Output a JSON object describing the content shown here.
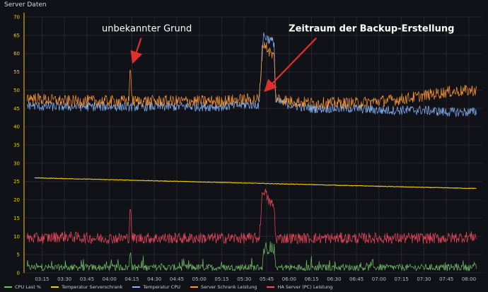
{
  "panel": {
    "title": "Server Daten"
  },
  "chart_data": {
    "type": "line",
    "xlabel": "",
    "ylabel": "",
    "ylim": [
      0,
      70
    ],
    "y_ticks": [
      0,
      5,
      10,
      15,
      20,
      25,
      30,
      35,
      40,
      45,
      50,
      55,
      60,
      65,
      70
    ],
    "x_ticks": [
      "03:15",
      "03:30",
      "03:45",
      "04:00",
      "04:15",
      "04:30",
      "04:45",
      "05:00",
      "05:15",
      "05:30",
      "05:45",
      "06:00",
      "06:15",
      "06:30",
      "06:45",
      "07:00",
      "07:15",
      "07:30",
      "07:45",
      "08:00"
    ],
    "grid": true,
    "legend_position": "bottom",
    "series": [
      {
        "name": "CPU Last %",
        "color": "#73bf69",
        "x": [
          "03:05",
          "03:30",
          "04:00",
          "04:13",
          "04:14",
          "04:15",
          "04:45",
          "05:15",
          "05:40",
          "05:42",
          "05:43",
          "05:50",
          "05:51",
          "06:15",
          "06:45",
          "07:15",
          "07:45",
          "08:05"
        ],
        "values": [
          1.5,
          1.5,
          1.5,
          1.5,
          6.5,
          1.5,
          1.5,
          1.5,
          1.5,
          1.5,
          6,
          6,
          1.5,
          1.5,
          1.5,
          1.5,
          1.5,
          1.5
        ]
      },
      {
        "name": "Temperatur Serverschrank",
        "color": "#f2cc0c",
        "x": [
          "03:10",
          "03:30",
          "04:00",
          "04:30",
          "05:00",
          "05:30",
          "06:00",
          "06:30",
          "07:00",
          "07:30",
          "08:05"
        ],
        "values": [
          26,
          25.8,
          25.5,
          25.2,
          24.9,
          24.6,
          24.3,
          24,
          23.7,
          23.4,
          23.1
        ]
      },
      {
        "name": "Temperatur CPU",
        "color": "#8ab8ff",
        "x": [
          "03:05",
          "03:15",
          "03:30",
          "03:45",
          "04:00",
          "04:15",
          "04:30",
          "04:45",
          "05:00",
          "05:15",
          "05:30",
          "05:40",
          "05:42",
          "05:43",
          "05:46",
          "05:50",
          "05:51",
          "06:00",
          "06:15",
          "06:30",
          "06:45",
          "07:00",
          "07:15",
          "07:30",
          "07:45",
          "08:05"
        ],
        "values": [
          46,
          45.5,
          45.5,
          45.5,
          45.5,
          45.5,
          45.5,
          45.5,
          45.5,
          45.5,
          46,
          46,
          62,
          65,
          64,
          63,
          47,
          46,
          45,
          45,
          45,
          44.5,
          44.5,
          44.5,
          44,
          44
        ]
      },
      {
        "name": "Server Schrank Leistung",
        "color": "#ff9830",
        "x": [
          "03:05",
          "03:15",
          "03:30",
          "03:45",
          "04:00",
          "04:13",
          "04:14",
          "04:15",
          "04:30",
          "04:45",
          "05:00",
          "05:15",
          "05:30",
          "05:40",
          "05:42",
          "05:43",
          "05:46",
          "05:50",
          "05:51",
          "06:00",
          "06:15",
          "06:30",
          "06:45",
          "07:00",
          "07:15",
          "07:30",
          "07:45",
          "08:05"
        ],
        "values": [
          48,
          47.5,
          47,
          47,
          47,
          47,
          58,
          47,
          47,
          47,
          47,
          47,
          47.5,
          47.5,
          60,
          63,
          61,
          59,
          48,
          47,
          46.5,
          46.5,
          46.5,
          47,
          47.5,
          48.5,
          49.5,
          50
        ]
      },
      {
        "name": "HA Server (PC) Leistung",
        "color": "#f2495c",
        "x": [
          "03:05",
          "03:15",
          "03:30",
          "03:45",
          "04:00",
          "04:13",
          "04:14",
          "04:15",
          "04:30",
          "04:45",
          "05:00",
          "05:15",
          "05:30",
          "05:40",
          "05:42",
          "05:43",
          "05:46",
          "05:50",
          "05:51",
          "06:00",
          "06:15",
          "06:30",
          "06:45",
          "07:00",
          "07:15",
          "07:30",
          "07:45",
          "08:05"
        ],
        "values": [
          9.5,
          9.5,
          10,
          9.5,
          9.5,
          9.5,
          20,
          9.5,
          9.5,
          9.5,
          9.5,
          9.5,
          9.5,
          9.5,
          21,
          23,
          20,
          18,
          9.5,
          9.5,
          9.5,
          9.5,
          9.5,
          9.5,
          9.5,
          9.5,
          9.5,
          10
        ]
      }
    ],
    "annotations": [
      {
        "text": "unbekannter Grund",
        "bold": false,
        "x": "04:14",
        "y": 58,
        "text_x": "04:25",
        "text_y": 66
      },
      {
        "text": "Zeitraum der Backup-Erstellung",
        "bold": true,
        "x": "05:43",
        "y": 50,
        "text_x": "06:55",
        "text_y": 66
      }
    ],
    "y_axis_color": "#f2cc0c",
    "annotation_arrow_color": "#e02f2f"
  }
}
